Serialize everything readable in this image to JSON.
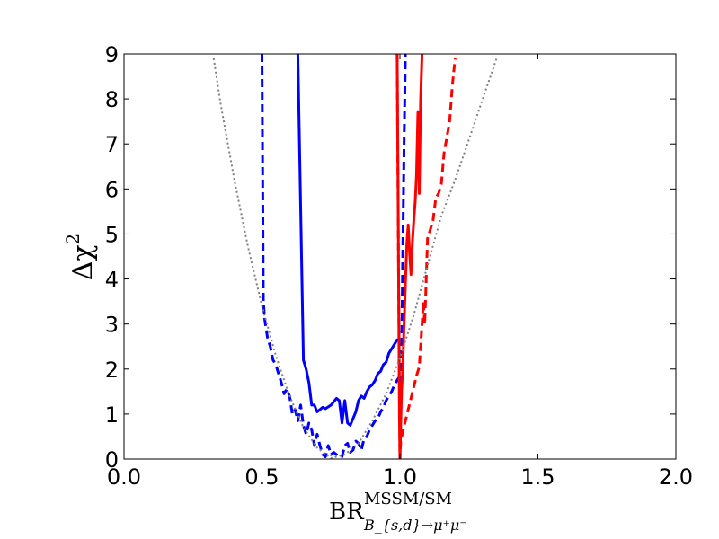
{
  "chart_data": {
    "type": "line",
    "xlabel": {
      "main": "BR",
      "sup": "MSSM/SM",
      "sub": "B_{s,d}→μ⁺μ⁻"
    },
    "ylabel": {
      "main": "Δχ",
      "sup": "2"
    },
    "xlim": [
      0.0,
      2.0
    ],
    "ylim": [
      0,
      9
    ],
    "xticks": [
      "0.0",
      "0.5",
      "1.0",
      "1.5",
      "2.0"
    ],
    "yticks": [
      "0",
      "1",
      "2",
      "3",
      "4",
      "5",
      "6",
      "7",
      "8",
      "9"
    ],
    "grid": false,
    "legend": "none",
    "series": [
      {
        "color": "#0000ff",
        "style": "solid",
        "x": [
          0.63,
          0.65,
          0.66,
          0.67,
          0.68,
          0.69,
          0.7,
          0.71,
          0.72,
          0.73,
          0.75,
          0.77,
          0.78,
          0.79,
          0.8,
          0.81,
          0.82,
          0.83,
          0.84,
          0.85,
          0.86,
          0.87,
          0.88,
          0.89,
          0.9,
          0.91,
          0.92,
          0.93,
          0.94,
          0.95,
          0.96,
          0.97,
          0.98,
          0.99,
          1.0
        ],
        "y": [
          9.0,
          2.2,
          2.0,
          1.7,
          1.2,
          1.2,
          1.05,
          1.1,
          1.15,
          1.12,
          1.2,
          1.35,
          1.3,
          0.8,
          1.3,
          0.8,
          0.75,
          0.9,
          1.05,
          1.3,
          1.4,
          1.35,
          1.5,
          1.6,
          1.65,
          1.75,
          1.9,
          1.95,
          2.1,
          2.15,
          2.35,
          2.45,
          2.55,
          2.65,
          2.65
        ]
      },
      {
        "color": "#0000ff",
        "style": "dashed",
        "x": [
          1.0,
          1.005,
          1.01,
          1.015,
          1.02
        ],
        "y": [
          0.0,
          1.7,
          4.5,
          7.0,
          9.0
        ]
      },
      {
        "color": "#0000ff",
        "style": "dashed",
        "x": [
          0.5,
          0.505,
          0.51,
          0.52,
          0.53,
          0.54,
          0.55,
          0.56,
          0.57,
          0.58,
          0.59,
          0.6,
          0.61,
          0.62,
          0.63,
          0.64,
          0.65,
          0.66,
          0.67,
          0.68,
          0.69,
          0.7,
          0.71,
          0.72,
          0.73,
          0.74,
          0.75,
          0.76,
          0.77,
          0.78,
          0.79,
          0.8,
          0.81,
          0.82,
          0.83,
          0.84,
          0.85,
          0.86,
          0.87,
          0.88,
          0.89,
          0.9,
          0.91,
          0.92,
          0.93,
          0.94,
          0.95,
          0.96,
          0.97,
          0.98,
          0.99,
          1.0
        ],
        "y": [
          9.0,
          3.5,
          3.1,
          2.7,
          2.5,
          2.2,
          2.1,
          1.9,
          1.7,
          1.45,
          1.55,
          1.4,
          1.0,
          1.1,
          0.85,
          1.2,
          0.75,
          0.55,
          0.8,
          0.65,
          0.3,
          0.55,
          0.3,
          0.1,
          0.05,
          0.3,
          0.1,
          0.15,
          0.1,
          0.05,
          0.05,
          0.3,
          0.35,
          0.15,
          0.2,
          0.4,
          0.35,
          0.2,
          0.45,
          0.5,
          0.65,
          0.75,
          0.85,
          0.9,
          1.05,
          1.15,
          1.3,
          1.4,
          1.5,
          1.65,
          1.75,
          1.85
        ]
      },
      {
        "color": "#ff0000",
        "style": "solid",
        "x": [
          0.99,
          0.993,
          0.996,
          0.998,
          1.0,
          1.003,
          1.006,
          1.01,
          1.015,
          1.02,
          1.025,
          1.03,
          1.035,
          1.04,
          1.045,
          1.05,
          1.055,
          1.06,
          1.065,
          1.07,
          1.075,
          1.08,
          1.085
        ],
        "y": [
          9.0,
          6.0,
          3.0,
          1.0,
          0.0,
          0.8,
          1.5,
          2.0,
          3.0,
          3.9,
          4.8,
          5.2,
          4.6,
          4.1,
          4.8,
          5.3,
          5.7,
          6.3,
          7.7,
          5.9,
          8.0,
          9.0,
          9.0
        ]
      },
      {
        "color": "#ff0000",
        "style": "dashed",
        "x": [
          0.99,
          0.995,
          1.0,
          1.003,
          1.01,
          1.02,
          1.03,
          1.04,
          1.05,
          1.06,
          1.07,
          1.08,
          1.085,
          1.09,
          1.1,
          1.11,
          1.12,
          1.13,
          1.14,
          1.15,
          1.16,
          1.17,
          1.18,
          1.19,
          1.2
        ],
        "y": [
          9.0,
          4.0,
          0.0,
          0.4,
          0.6,
          0.85,
          1.1,
          1.35,
          1.6,
          1.85,
          2.05,
          3.0,
          3.5,
          3.0,
          4.9,
          5.1,
          5.3,
          5.8,
          5.9,
          6.1,
          6.8,
          7.15,
          7.5,
          8.3,
          8.9
        ]
      },
      {
        "color": "#808080",
        "style": "dotted",
        "x": [
          0.325,
          0.35,
          0.4,
          0.45,
          0.5,
          0.55,
          0.6,
          0.65,
          0.7,
          0.75,
          0.8,
          0.85,
          0.9,
          0.95,
          1.0,
          1.05,
          1.1,
          1.15,
          1.2,
          1.25,
          1.3,
          1.35
        ],
        "y": [
          8.9,
          7.9,
          6.2,
          4.7,
          3.4,
          2.3,
          1.4,
          0.7,
          0.25,
          0.02,
          0.1,
          0.35,
          0.85,
          1.45,
          2.25,
          3.2,
          4.3,
          5.4,
          6.2,
          7.1,
          8.0,
          8.9
        ]
      }
    ]
  }
}
